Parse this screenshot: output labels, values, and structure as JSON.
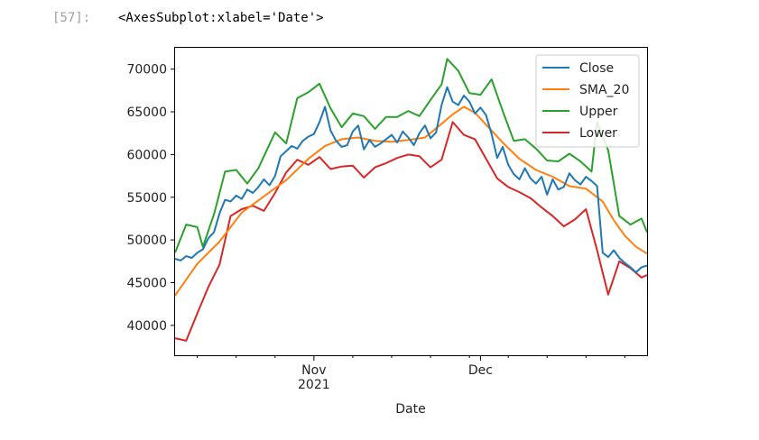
{
  "cell": {
    "prompt": "[57]:",
    "output_text": "<AxesSubplot:xlabel='Date'>"
  },
  "chart_data": {
    "type": "line",
    "title": "",
    "xlabel": "Date",
    "ylabel": "",
    "x_start": "2021-10-07",
    "x_end": "2021-12-31",
    "xlim": [
      "2021-10-07",
      "2021-12-31"
    ],
    "ylim": [
      36500,
      72500
    ],
    "y_ticks": [
      {
        "value": 40000,
        "label": "40000"
      },
      {
        "value": 45000,
        "label": "45000"
      },
      {
        "value": 50000,
        "label": "50000"
      },
      {
        "value": 55000,
        "label": "55000"
      },
      {
        "value": 60000,
        "label": "60000"
      },
      {
        "value": 65000,
        "label": "65000"
      },
      {
        "value": 70000,
        "label": "70000"
      }
    ],
    "x_major_ticks": [
      {
        "date": "2021-11-01",
        "label": "Nov",
        "sublabel": "2021"
      },
      {
        "date": "2021-12-01",
        "label": "Dec",
        "sublabel": ""
      }
    ],
    "x_minor_ticks": [
      "2021-10-11",
      "2021-10-18",
      "2021-10-25",
      "2021-11-08",
      "2021-11-15",
      "2021-11-22",
      "2021-11-29",
      "2021-12-06",
      "2021-12-13",
      "2021-12-20",
      "2021-12-27"
    ],
    "legend": {
      "position": "upper right",
      "entries": [
        "Close",
        "SMA_20",
        "Upper",
        "Lower"
      ]
    },
    "grid": false,
    "series": [
      {
        "name": "Close",
        "color": "#1f77b4",
        "points": [
          [
            "2021-10-07",
            47800
          ],
          [
            "2021-10-08",
            47600
          ],
          [
            "2021-10-09",
            48100
          ],
          [
            "2021-10-10",
            47900
          ],
          [
            "2021-10-11",
            48500
          ],
          [
            "2021-10-12",
            48900
          ],
          [
            "2021-10-13",
            50200
          ],
          [
            "2021-10-14",
            50900
          ],
          [
            "2021-10-15",
            53100
          ],
          [
            "2021-10-16",
            54700
          ],
          [
            "2021-10-17",
            54500
          ],
          [
            "2021-10-18",
            55200
          ],
          [
            "2021-10-19",
            54800
          ],
          [
            "2021-10-20",
            55900
          ],
          [
            "2021-10-21",
            55500
          ],
          [
            "2021-10-22",
            56200
          ],
          [
            "2021-10-23",
            57100
          ],
          [
            "2021-10-24",
            56400
          ],
          [
            "2021-10-25",
            57500
          ],
          [
            "2021-10-26",
            59800
          ],
          [
            "2021-10-27",
            60400
          ],
          [
            "2021-10-28",
            61000
          ],
          [
            "2021-10-29",
            60700
          ],
          [
            "2021-10-30",
            61600
          ],
          [
            "2021-10-31",
            62100
          ],
          [
            "2021-11-01",
            62400
          ],
          [
            "2021-11-02",
            63800
          ],
          [
            "2021-11-03",
            65600
          ],
          [
            "2021-11-04",
            62800
          ],
          [
            "2021-11-05",
            61600
          ],
          [
            "2021-11-06",
            60900
          ],
          [
            "2021-11-07",
            61100
          ],
          [
            "2021-11-08",
            62700
          ],
          [
            "2021-11-09",
            63400
          ],
          [
            "2021-11-10",
            60600
          ],
          [
            "2021-11-11",
            61700
          ],
          [
            "2021-11-12",
            60900
          ],
          [
            "2021-11-13",
            61300
          ],
          [
            "2021-11-14",
            61800
          ],
          [
            "2021-11-15",
            62300
          ],
          [
            "2021-11-16",
            61400
          ],
          [
            "2021-11-17",
            62700
          ],
          [
            "2021-11-18",
            62000
          ],
          [
            "2021-11-19",
            61100
          ],
          [
            "2021-11-20",
            62500
          ],
          [
            "2021-11-21",
            63400
          ],
          [
            "2021-11-22",
            61900
          ],
          [
            "2021-11-23",
            62600
          ],
          [
            "2021-11-24",
            65800
          ],
          [
            "2021-11-25",
            67900
          ],
          [
            "2021-11-26",
            66200
          ],
          [
            "2021-11-27",
            65800
          ],
          [
            "2021-11-28",
            66900
          ],
          [
            "2021-11-29",
            66200
          ],
          [
            "2021-11-30",
            64800
          ],
          [
            "2021-12-01",
            65500
          ],
          [
            "2021-12-02",
            64600
          ],
          [
            "2021-12-03",
            62400
          ],
          [
            "2021-12-04",
            59600
          ],
          [
            "2021-12-05",
            60900
          ],
          [
            "2021-12-06",
            58800
          ],
          [
            "2021-12-07",
            57700
          ],
          [
            "2021-12-08",
            57100
          ],
          [
            "2021-12-09",
            58400
          ],
          [
            "2021-12-10",
            57200
          ],
          [
            "2021-12-11",
            56600
          ],
          [
            "2021-12-12",
            57400
          ],
          [
            "2021-12-13",
            55300
          ],
          [
            "2021-12-14",
            57100
          ],
          [
            "2021-12-15",
            55900
          ],
          [
            "2021-12-16",
            56200
          ],
          [
            "2021-12-17",
            57800
          ],
          [
            "2021-12-18",
            57000
          ],
          [
            "2021-12-19",
            56500
          ],
          [
            "2021-12-20",
            57400
          ],
          [
            "2021-12-21",
            56900
          ],
          [
            "2021-12-22",
            56300
          ],
          [
            "2021-12-23",
            48500
          ],
          [
            "2021-12-24",
            48000
          ],
          [
            "2021-12-25",
            48800
          ],
          [
            "2021-12-26",
            47900
          ],
          [
            "2021-12-27",
            47300
          ],
          [
            "2021-12-28",
            46800
          ],
          [
            "2021-12-29",
            46200
          ],
          [
            "2021-12-30",
            46800
          ],
          [
            "2021-12-31",
            47000
          ]
        ]
      },
      {
        "name": "SMA_20",
        "color": "#ff7f0e",
        "points": [
          [
            "2021-10-07",
            43500
          ],
          [
            "2021-10-11",
            47200
          ],
          [
            "2021-10-15",
            49800
          ],
          [
            "2021-10-19",
            53200
          ],
          [
            "2021-10-23",
            55100
          ],
          [
            "2021-10-27",
            57000
          ],
          [
            "2021-10-31",
            59500
          ],
          [
            "2021-11-03",
            61000
          ],
          [
            "2021-11-06",
            61800
          ],
          [
            "2021-11-09",
            62000
          ],
          [
            "2021-11-12",
            61600
          ],
          [
            "2021-11-15",
            61500
          ],
          [
            "2021-11-18",
            61700
          ],
          [
            "2021-11-21",
            62000
          ],
          [
            "2021-11-24",
            63600
          ],
          [
            "2021-11-26",
            64700
          ],
          [
            "2021-11-28",
            65600
          ],
          [
            "2021-11-30",
            64900
          ],
          [
            "2021-12-02",
            63500
          ],
          [
            "2021-12-05",
            61400
          ],
          [
            "2021-12-08",
            59500
          ],
          [
            "2021-12-11",
            58200
          ],
          [
            "2021-12-14",
            57400
          ],
          [
            "2021-12-17",
            56300
          ],
          [
            "2021-12-20",
            56000
          ],
          [
            "2021-12-23",
            54500
          ],
          [
            "2021-12-25",
            52300
          ],
          [
            "2021-12-27",
            50500
          ],
          [
            "2021-12-29",
            49200
          ],
          [
            "2021-12-31",
            48400
          ]
        ]
      },
      {
        "name": "Upper",
        "color": "#2ca02c",
        "points": [
          [
            "2021-10-07",
            48500
          ],
          [
            "2021-10-09",
            51800
          ],
          [
            "2021-10-11",
            51500
          ],
          [
            "2021-10-12",
            49200
          ],
          [
            "2021-10-14",
            53000
          ],
          [
            "2021-10-16",
            58000
          ],
          [
            "2021-10-18",
            58200
          ],
          [
            "2021-10-20",
            56600
          ],
          [
            "2021-10-22",
            58400
          ],
          [
            "2021-10-25",
            62600
          ],
          [
            "2021-10-27",
            61300
          ],
          [
            "2021-10-29",
            66600
          ],
          [
            "2021-10-31",
            67300
          ],
          [
            "2021-11-02",
            68300
          ],
          [
            "2021-11-04",
            65400
          ],
          [
            "2021-11-06",
            63200
          ],
          [
            "2021-11-08",
            64800
          ],
          [
            "2021-11-10",
            64500
          ],
          [
            "2021-11-12",
            63000
          ],
          [
            "2021-11-14",
            64400
          ],
          [
            "2021-11-16",
            64400
          ],
          [
            "2021-11-18",
            65100
          ],
          [
            "2021-11-20",
            64500
          ],
          [
            "2021-11-22",
            66400
          ],
          [
            "2021-11-24",
            68200
          ],
          [
            "2021-11-25",
            71200
          ],
          [
            "2021-11-27",
            69800
          ],
          [
            "2021-11-29",
            67200
          ],
          [
            "2021-12-01",
            67000
          ],
          [
            "2021-12-03",
            68800
          ],
          [
            "2021-12-05",
            65100
          ],
          [
            "2021-12-07",
            61600
          ],
          [
            "2021-12-09",
            61800
          ],
          [
            "2021-12-11",
            60700
          ],
          [
            "2021-12-13",
            59300
          ],
          [
            "2021-12-15",
            59200
          ],
          [
            "2021-12-17",
            60100
          ],
          [
            "2021-12-19",
            59200
          ],
          [
            "2021-12-21",
            58000
          ],
          [
            "2021-12-22",
            63800
          ],
          [
            "2021-12-24",
            60500
          ],
          [
            "2021-12-26",
            52800
          ],
          [
            "2021-12-28",
            51800
          ],
          [
            "2021-12-30",
            52500
          ],
          [
            "2021-12-31",
            50900
          ]
        ]
      },
      {
        "name": "Lower",
        "color": "#d62728",
        "points": [
          [
            "2021-10-07",
            38500
          ],
          [
            "2021-10-09",
            38200
          ],
          [
            "2021-10-11",
            41400
          ],
          [
            "2021-10-13",
            44500
          ],
          [
            "2021-10-15",
            47100
          ],
          [
            "2021-10-17",
            52800
          ],
          [
            "2021-10-19",
            53600
          ],
          [
            "2021-10-21",
            54000
          ],
          [
            "2021-10-23",
            53400
          ],
          [
            "2021-10-25",
            55500
          ],
          [
            "2021-10-27",
            57900
          ],
          [
            "2021-10-29",
            59400
          ],
          [
            "2021-10-31",
            58800
          ],
          [
            "2021-11-02",
            59700
          ],
          [
            "2021-11-04",
            58300
          ],
          [
            "2021-11-06",
            58600
          ],
          [
            "2021-11-08",
            58700
          ],
          [
            "2021-11-10",
            57300
          ],
          [
            "2021-11-12",
            58500
          ],
          [
            "2021-11-14",
            59000
          ],
          [
            "2021-11-16",
            59600
          ],
          [
            "2021-11-18",
            60000
          ],
          [
            "2021-11-20",
            59800
          ],
          [
            "2021-11-22",
            58500
          ],
          [
            "2021-11-24",
            59400
          ],
          [
            "2021-11-26",
            63800
          ],
          [
            "2021-11-28",
            62300
          ],
          [
            "2021-11-30",
            61800
          ],
          [
            "2021-12-02",
            59500
          ],
          [
            "2021-12-04",
            57200
          ],
          [
            "2021-12-06",
            56200
          ],
          [
            "2021-12-08",
            55600
          ],
          [
            "2021-12-10",
            54900
          ],
          [
            "2021-12-12",
            53800
          ],
          [
            "2021-12-14",
            52800
          ],
          [
            "2021-12-16",
            51600
          ],
          [
            "2021-12-18",
            52400
          ],
          [
            "2021-12-20",
            53600
          ],
          [
            "2021-12-22",
            48800
          ],
          [
            "2021-12-24",
            43600
          ],
          [
            "2021-12-26",
            47500
          ],
          [
            "2021-12-28",
            46700
          ],
          [
            "2021-12-30",
            45600
          ],
          [
            "2021-12-31",
            45900
          ]
        ]
      }
    ]
  }
}
